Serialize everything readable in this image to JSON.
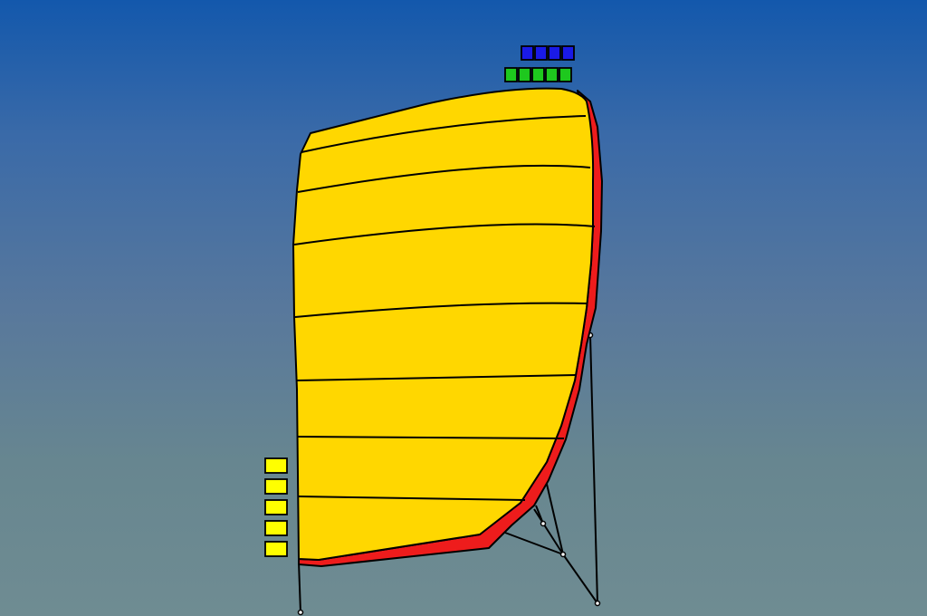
{
  "scene": {
    "background_top": "#1358ac",
    "background_bottom": "#6f8c92",
    "sail_color": "#ffd700",
    "edge_color": "#ee1c1c",
    "outline_color": "#000000"
  },
  "markers": {
    "top_row": {
      "count": 4,
      "color": "#1a1ae6"
    },
    "second_row": {
      "count": 5,
      "color": "#1ec81e"
    },
    "left_column": {
      "count": 5,
      "color": "#ffff00"
    }
  }
}
